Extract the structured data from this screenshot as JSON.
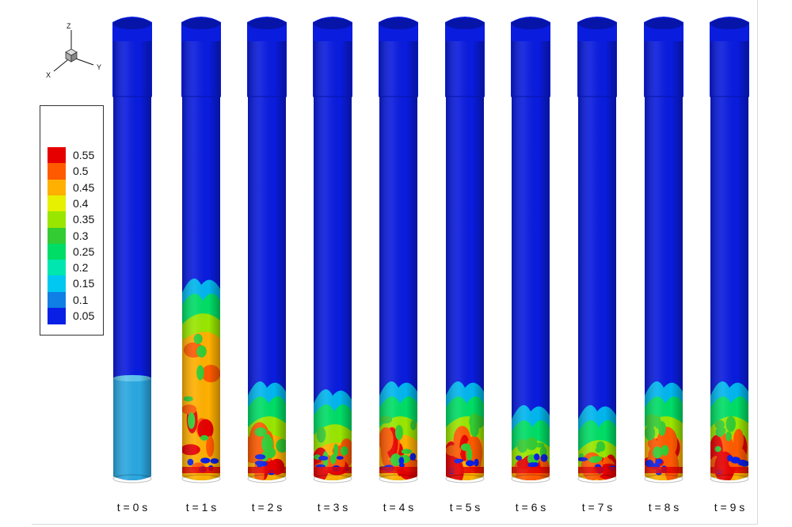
{
  "axes_triad": {
    "x": "X",
    "y": "Y",
    "z": "Z"
  },
  "legend": {
    "levels": [
      {
        "value": "0.55",
        "color": "#e60000"
      },
      {
        "value": "0.5",
        "color": "#ff5a00"
      },
      {
        "value": "0.45",
        "color": "#ffb000"
      },
      {
        "value": "0.4",
        "color": "#e6f000"
      },
      {
        "value": "0.35",
        "color": "#99e600"
      },
      {
        "value": "0.3",
        "color": "#33cc33"
      },
      {
        "value": "0.25",
        "color": "#00dd66"
      },
      {
        "value": "0.2",
        "color": "#00e6b0"
      },
      {
        "value": "0.15",
        "color": "#00c8f0"
      },
      {
        "value": "0.1",
        "color": "#0f7fe6"
      },
      {
        "value": "0.05",
        "color": "#0a1fe6"
      }
    ]
  },
  "frames": [
    {
      "label": "t = 0 s"
    },
    {
      "label": "t = 1 s"
    },
    {
      "label": "t = 2 s"
    },
    {
      "label": "t = 3 s"
    },
    {
      "label": "t = 4 s"
    },
    {
      "label": "t = 5 s"
    },
    {
      "label": "t = 6 s"
    },
    {
      "label": "t = 7 s"
    },
    {
      "label": "t = 8 s"
    },
    {
      "label": "t = 9 s"
    }
  ],
  "colors": {
    "column_blue": "#0a1cde",
    "column_blue_shade": "#0614a8",
    "initial_bed": "#2aa8e0",
    "outline": "#111111"
  }
}
